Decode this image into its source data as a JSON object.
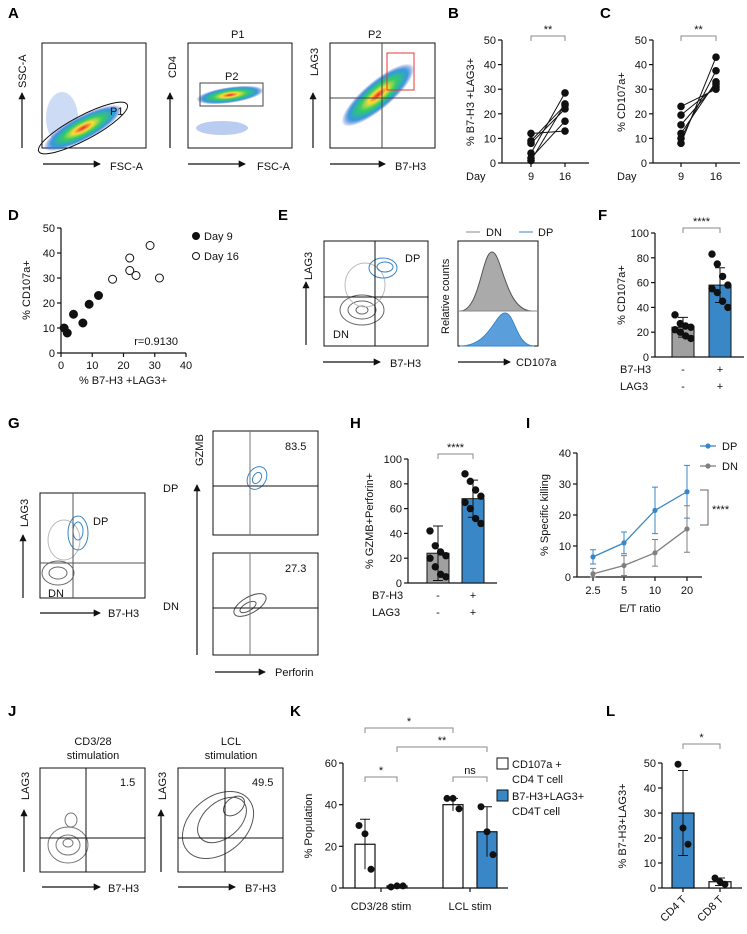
{
  "panels": {
    "A": "A",
    "B": "B",
    "C": "C",
    "D": "D",
    "E": "E",
    "F": "F",
    "G": "G",
    "H": "H",
    "I": "I",
    "J": "J",
    "K": "K",
    "L": "L"
  },
  "colors": {
    "blue": "#3a87c8",
    "gray": "#a0a0a0",
    "dark": "#111111",
    "gray_line": "#7f7f7f"
  },
  "flow_A": {
    "plot1": {
      "x": "FSC-A",
      "y": "SSC-A",
      "gate": "P1"
    },
    "plot2": {
      "title": "P1",
      "x": "FSC-A",
      "y": "CD4",
      "gate": "P2"
    },
    "plot3": {
      "title": "P2",
      "x": "B7-H3",
      "y": "LAG3"
    }
  },
  "flow_E": {
    "x": "B7-H3",
    "y": "LAG3",
    "dp": "DP",
    "dn": "DN",
    "hist_y": "Relative counts",
    "hist_x": "CD107a",
    "legend": [
      "DN",
      "DP"
    ]
  },
  "flow_G": {
    "x": "B7-H3",
    "y": "LAG3",
    "dp": "DP",
    "dn": "DN",
    "right_y": "GZMB",
    "right_x": "Perforin",
    "dp_value": "83.5",
    "dn_value": "27.3",
    "row_dp": "DP",
    "row_dn": "DN"
  },
  "flow_J": {
    "left_title": [
      "CD3/28",
      "stimulation"
    ],
    "right_title": [
      "LCL",
      "stimulation"
    ],
    "x": "B7-H3",
    "y": "LAG3",
    "left_value": "1.5",
    "right_value": "49.5"
  },
  "chart_data": [
    {
      "panel": "B",
      "type": "line",
      "xlabel": "Day",
      "ylabel": "% B7-H3 +LAG3+",
      "categories": [
        "9",
        "16"
      ],
      "ylim": [
        0,
        50
      ],
      "yticks": [
        0,
        10,
        20,
        30,
        40,
        50
      ],
      "sig": "**",
      "pairs": [
        [
          12,
          13
        ],
        [
          9,
          23.5
        ],
        [
          8,
          22
        ],
        [
          4,
          28.5
        ],
        [
          2,
          17
        ],
        [
          1,
          24
        ]
      ]
    },
    {
      "panel": "C",
      "type": "line",
      "xlabel": "Day",
      "ylabel": "% CD107a+",
      "categories": [
        "9",
        "16"
      ],
      "ylim": [
        0,
        50
      ],
      "yticks": [
        0,
        10,
        20,
        30,
        40,
        50
      ],
      "sig": "**",
      "pairs": [
        [
          23,
          30
        ],
        [
          19.5,
          31
        ],
        [
          15.5,
          32
        ],
        [
          12,
          33
        ],
        [
          10,
          37.5
        ],
        [
          8,
          43
        ]
      ]
    },
    {
      "panel": "D",
      "type": "scatter",
      "xlabel": "% B7-H3 +LAG3+",
      "ylabel": "% CD107a+",
      "xlim": [
        0,
        40
      ],
      "ylim": [
        0,
        50
      ],
      "xticks": [
        0,
        10,
        20,
        30,
        40
      ],
      "yticks": [
        0,
        10,
        20,
        30,
        40,
        50
      ],
      "annotation": "r=0.9130",
      "series": [
        {
          "name": "Day 9",
          "filled": true,
          "points": [
            [
              1,
              10
            ],
            [
              2,
              8
            ],
            [
              4,
              15.5
            ],
            [
              7,
              12
            ],
            [
              9,
              19.5
            ],
            [
              12,
              23
            ]
          ]
        },
        {
          "name": "Day 16",
          "filled": false,
          "points": [
            [
              16.5,
              29.5
            ],
            [
              22,
              38
            ],
            [
              22,
              33
            ],
            [
              24,
              31
            ],
            [
              28.5,
              43
            ],
            [
              31.5,
              30
            ]
          ]
        }
      ]
    },
    {
      "panel": "F",
      "type": "bar",
      "ylabel": "% CD107a+",
      "ylim": [
        0,
        100
      ],
      "yticks": [
        0,
        20,
        40,
        60,
        80,
        100
      ],
      "sig": "****",
      "row_labels": [
        "B7-H3",
        "LAG3"
      ],
      "groups": [
        {
          "signs": [
            "-",
            "-"
          ],
          "mean": 24,
          "sd": 8,
          "color": "gray",
          "points": [
            34,
            27,
            25,
            24,
            22,
            20,
            17,
            15
          ]
        },
        {
          "signs": [
            "+",
            "+"
          ],
          "mean": 58,
          "sd": 14,
          "color": "blue",
          "points": [
            83,
            75,
            65,
            58,
            55,
            52,
            45,
            40
          ]
        }
      ]
    },
    {
      "panel": "H",
      "type": "bar",
      "ylabel": "% GZMB+Perforin+",
      "ylim": [
        0,
        100
      ],
      "yticks": [
        0,
        20,
        40,
        60,
        80,
        100
      ],
      "sig": "****",
      "row_labels": [
        "B7-H3",
        "LAG3"
      ],
      "groups": [
        {
          "signs": [
            "-",
            "-"
          ],
          "mean": 24,
          "sd": 22,
          "color": "gray",
          "points": [
            42,
            30,
            25,
            22,
            20,
            13,
            7,
            5
          ]
        },
        {
          "signs": [
            "+",
            "+"
          ],
          "mean": 68,
          "sd": 15,
          "color": "blue",
          "points": [
            88,
            82,
            75,
            70,
            65,
            60,
            52,
            48
          ]
        }
      ]
    },
    {
      "panel": "I",
      "type": "line",
      "xlabel": "E/T ratio",
      "ylabel": "% Specific killing",
      "categories": [
        "2.5",
        "5",
        "10",
        "20"
      ],
      "ylim": [
        0,
        40
      ],
      "yticks": [
        0,
        10,
        20,
        30,
        40
      ],
      "sig": "****",
      "series": [
        {
          "name": "DP",
          "color": "blue",
          "values": [
            6.5,
            11,
            21.5,
            27.5
          ],
          "err": [
            2.3,
            3.5,
            7.5,
            8.5
          ]
        },
        {
          "name": "DN",
          "color": "gray_line",
          "values": [
            1,
            3.7,
            7.8,
            15.5
          ],
          "err": [
            1.8,
            3.2,
            4.3,
            7.5
          ]
        }
      ]
    },
    {
      "panel": "K",
      "type": "bar",
      "ylabel": "% Population",
      "ylim": [
        0,
        60
      ],
      "yticks": [
        0,
        20,
        40,
        60
      ],
      "categories": [
        "CD3/28 stim",
        "LCL stim"
      ],
      "legend": [
        {
          "label": [
            "CD107a +",
            "CD4 T cell"
          ],
          "color": "white"
        },
        {
          "label": [
            "B7-H3+LAG3+",
            "CD4T cell"
          ],
          "color": "blue"
        }
      ],
      "bars": [
        {
          "cat": 0,
          "series": 0,
          "mean": 21,
          "sd": 12,
          "points": [
            30,
            26,
            9
          ]
        },
        {
          "cat": 0,
          "series": 1,
          "mean": 1,
          "sd": 0.3,
          "points": [
            0.5,
            1,
            1
          ]
        },
        {
          "cat": 1,
          "series": 0,
          "mean": 40,
          "sd": 3,
          "points": [
            43,
            43,
            38
          ]
        },
        {
          "cat": 1,
          "series": 1,
          "mean": 27,
          "sd": 12,
          "points": [
            39,
            27,
            16
          ]
        }
      ],
      "sigs": [
        {
          "label": "*",
          "from": "CD3 white",
          "to": "CD3 blue"
        },
        {
          "label": "ns",
          "from": "LCL white",
          "to": "LCL blue"
        },
        {
          "label": "*",
          "from": "CD3 white",
          "to": "LCL white"
        },
        {
          "label": "**",
          "from": "CD3 blue",
          "to": "LCL blue"
        }
      ]
    },
    {
      "panel": "L",
      "type": "bar",
      "ylabel": "% B7-H3+LAG3+",
      "ylim": [
        0,
        50
      ],
      "yticks": [
        0,
        10,
        20,
        30,
        40,
        50
      ],
      "categories": [
        "CD4 T",
        "CD8 T"
      ],
      "sig": "*",
      "bars": [
        {
          "mean": 30,
          "sd": 17,
          "color": "blue",
          "points": [
            49.5,
            24,
            17.5
          ]
        },
        {
          "mean": 2.5,
          "sd": 1.5,
          "color": "white",
          "points": [
            4,
            2.5,
            1.5
          ]
        }
      ]
    }
  ]
}
